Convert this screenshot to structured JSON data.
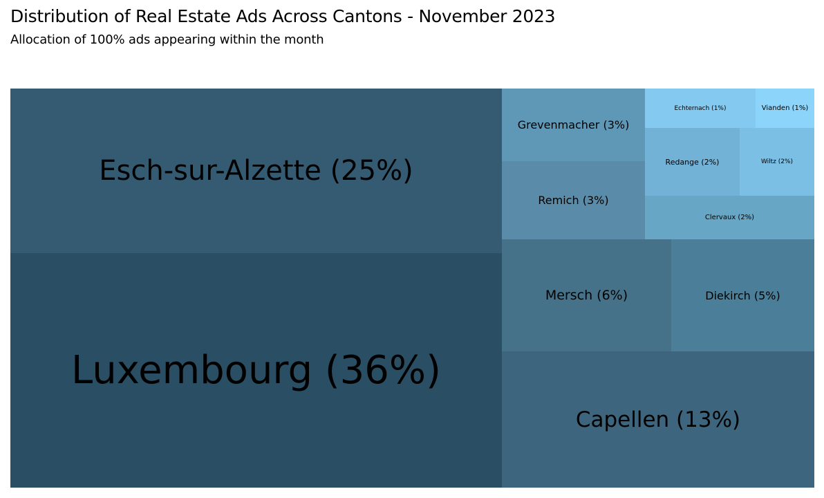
{
  "chart_data": {
    "type": "treemap",
    "title": "Distribution of Real Estate Ads Across Cantons - November 2023",
    "subtitle": "Allocation of 100% ads appearing within the month",
    "unit": "%",
    "items": [
      {
        "name": "Luxembourg",
        "label": "Luxembourg (36%)",
        "value": 36,
        "color": "#2a4f64"
      },
      {
        "name": "Esch-sur-Alzette",
        "label": "Esch-sur-Alzette (25%)",
        "value": 25,
        "color": "#345b71"
      },
      {
        "name": "Capellen",
        "label": "Capellen (13%)",
        "value": 13,
        "color": "#3d667e"
      },
      {
        "name": "Mersch",
        "label": "Mersch (6%)",
        "value": 6,
        "color": "#457289"
      },
      {
        "name": "Diekirch",
        "label": "Diekirch (5%)",
        "value": 5,
        "color": "#4b7f99"
      },
      {
        "name": "Remich",
        "label": "Remich (3%)",
        "value": 3,
        "color": "#5a8ba8"
      },
      {
        "name": "Grevenmacher",
        "label": "Grevenmacher (3%)",
        "value": 3,
        "color": "#5f98b7"
      },
      {
        "name": "Clervaux",
        "label": "Clervaux (2%)",
        "value": 2,
        "color": "#68a6c6"
      },
      {
        "name": "Redange",
        "label": "Redange (2%)",
        "value": 2,
        "color": "#72b2d6"
      },
      {
        "name": "Wiltz",
        "label": "Wiltz (2%)",
        "value": 2,
        "color": "#7bbfe4"
      },
      {
        "name": "Echternach",
        "label": "Echternach (1%)",
        "value": 1,
        "color": "#84c9ef"
      },
      {
        "name": "Vianden",
        "label": "Vianden (1%)",
        "value": 1,
        "color": "#8dd4fa"
      }
    ]
  }
}
